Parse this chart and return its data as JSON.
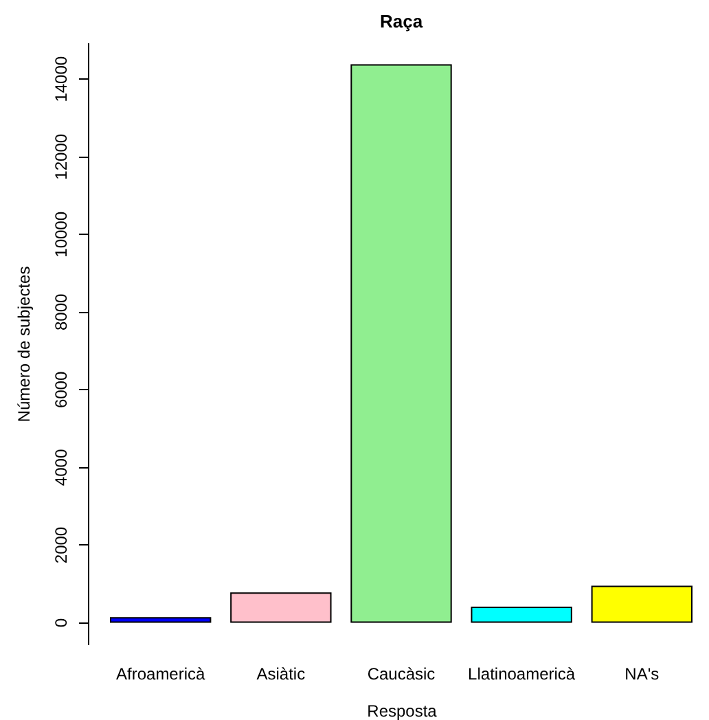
{
  "chart_data": {
    "type": "bar",
    "title": "Raça",
    "xlabel": "Resposta",
    "ylabel": "Número de subjectes",
    "categories": [
      "Afroamericà",
      "Asiàtic",
      "Caucàsic",
      "Llatinoamericà",
      "NA's"
    ],
    "values": [
      110,
      750,
      14350,
      380,
      920
    ],
    "colors": [
      "#0000ff",
      "#ffc0cb",
      "#90ee90",
      "#00ffff",
      "#ffff00"
    ],
    "ylim": [
      -574,
      14924
    ],
    "yticks": [
      0,
      2000,
      4000,
      6000,
      8000,
      10000,
      12000,
      14000
    ],
    "grid": false,
    "legend": false
  }
}
